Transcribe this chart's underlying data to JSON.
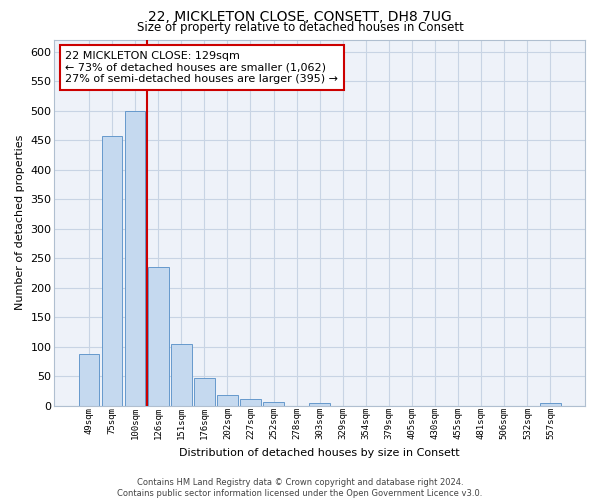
{
  "title": "22, MICKLETON CLOSE, CONSETT, DH8 7UG",
  "subtitle": "Size of property relative to detached houses in Consett",
  "xlabel": "Distribution of detached houses by size in Consett",
  "ylabel": "Number of detached properties",
  "categories": [
    "49sqm",
    "75sqm",
    "100sqm",
    "126sqm",
    "151sqm",
    "176sqm",
    "202sqm",
    "227sqm",
    "252sqm",
    "278sqm",
    "303sqm",
    "329sqm",
    "354sqm",
    "379sqm",
    "405sqm",
    "430sqm",
    "455sqm",
    "481sqm",
    "506sqm",
    "532sqm",
    "557sqm"
  ],
  "bar_values": [
    88,
    458,
    500,
    235,
    104,
    46,
    18,
    11,
    6,
    0,
    5,
    0,
    0,
    0,
    0,
    0,
    0,
    0,
    0,
    0,
    5
  ],
  "bar_color": "#c5d9ef",
  "bar_edge_color": "#6699cc",
  "background_color": "#eef2f9",
  "grid_color": "#c8d4e4",
  "red_line_color": "#cc0000",
  "annotation_text": "22 MICKLETON CLOSE: 129sqm\n← 73% of detached houses are smaller (1,062)\n27% of semi-detached houses are larger (395) →",
  "annotation_box_color": "#ffffff",
  "annotation_border_color": "#cc0000",
  "ylim": [
    0,
    620
  ],
  "yticks": [
    0,
    50,
    100,
    150,
    200,
    250,
    300,
    350,
    400,
    450,
    500,
    550,
    600
  ],
  "footer_line1": "Contains HM Land Registry data © Crown copyright and database right 2024.",
  "footer_line2": "Contains public sector information licensed under the Open Government Licence v3.0."
}
